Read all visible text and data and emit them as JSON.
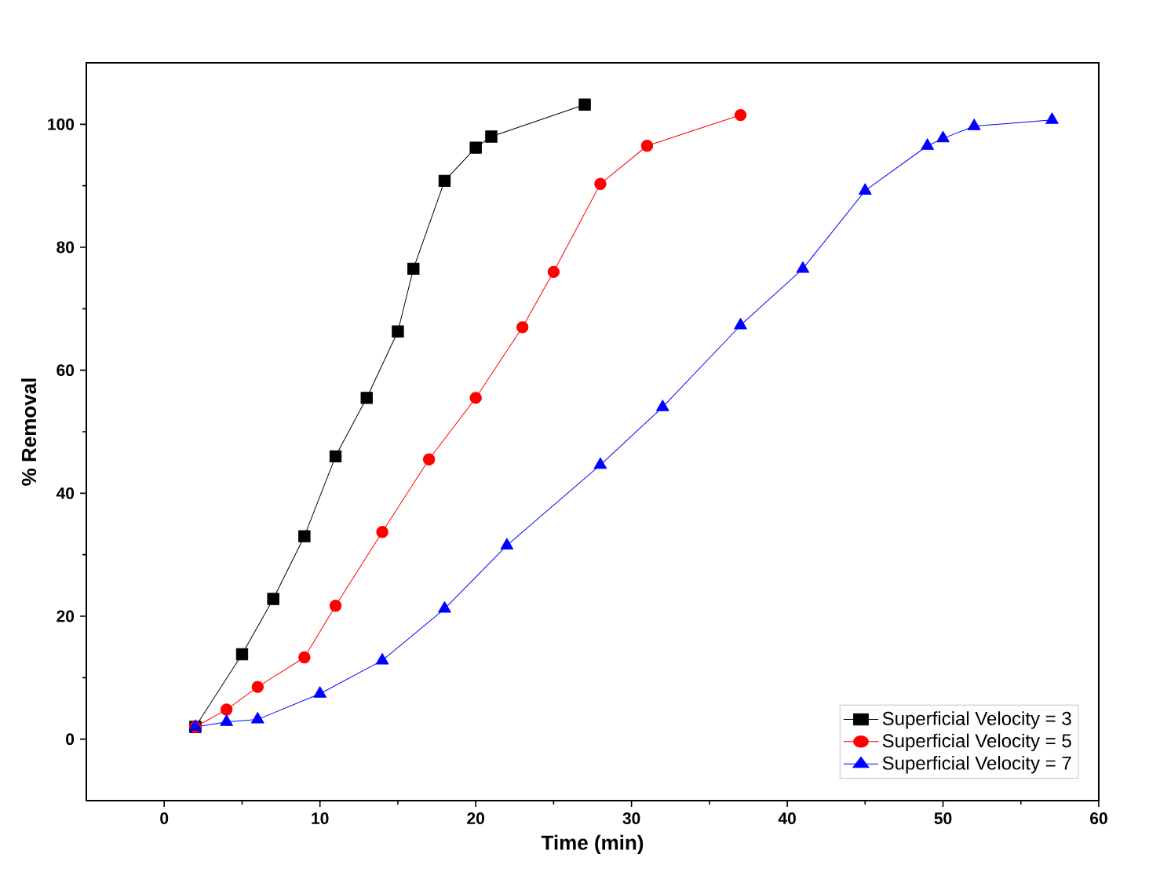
{
  "chart_data": {
    "type": "line",
    "xlabel": "Time (min)",
    "ylabel": "% Removal",
    "xlim": [
      -5,
      60
    ],
    "ylim": [
      -10,
      110
    ],
    "xticks": [
      0,
      10,
      20,
      30,
      40,
      50,
      60
    ],
    "yticks": [
      0,
      20,
      40,
      60,
      80,
      100
    ],
    "grid": false,
    "legend": "bottom right",
    "line_style": "solid",
    "series": [
      {
        "name": "Superficial Velocity = 3",
        "color": "#000000",
        "marker": "square",
        "x": [
          2,
          5,
          7,
          9,
          11,
          13,
          15,
          16,
          18,
          20,
          21,
          27
        ],
        "values": [
          2,
          13.8,
          22.8,
          33,
          46,
          55.5,
          66.3,
          76.5,
          90.8,
          96.2,
          98,
          103.2
        ]
      },
      {
        "name": "Superficial Velocity = 5",
        "color": "#ff0000",
        "marker": "circle",
        "x": [
          2,
          4,
          6,
          9,
          11,
          14,
          17,
          20,
          23,
          25,
          28,
          31,
          37
        ],
        "values": [
          2,
          4.8,
          8.5,
          13.3,
          21.7,
          33.7,
          45.5,
          55.5,
          67,
          76,
          90.3,
          96.5,
          101.5
        ]
      },
      {
        "name": "Superficial Velocity = 7",
        "color": "#0000ff",
        "marker": "triangle",
        "x": [
          2,
          4,
          6,
          10,
          14,
          18,
          22,
          28,
          32,
          37,
          41,
          45,
          49,
          50,
          52,
          57
        ],
        "values": [
          2,
          2.8,
          3.2,
          7.4,
          12.8,
          21.2,
          31.5,
          44.6,
          54,
          67.3,
          76.5,
          89.2,
          96.5,
          97.7,
          99.7,
          100.7
        ]
      }
    ]
  }
}
